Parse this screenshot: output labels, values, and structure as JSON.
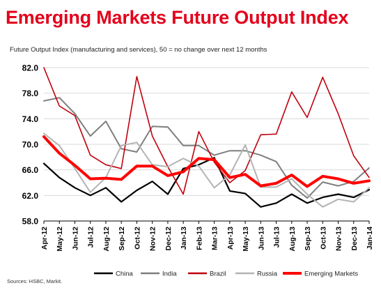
{
  "chart_data": {
    "type": "line",
    "title": "Emerging Markets Future Output Index",
    "subtitle": "Future Output Index (manufacturing and services), 50 = no change over next 12 months",
    "source": "Sources: HSBC, Markit.",
    "ylim": [
      58.0,
      82.0
    ],
    "yticks": [
      "82.0",
      "78.0",
      "74.0",
      "70.0",
      "66.0",
      "62.0",
      "58.0"
    ],
    "ytick_values": [
      82,
      78,
      74,
      70,
      66,
      62,
      58
    ],
    "grid": true,
    "legend": "bottom",
    "categories": [
      "Apr-12",
      "May-12",
      "Jun-12",
      "Jul-12",
      "Aug-12",
      "Sep-12",
      "Oct-12",
      "Nov-12",
      "Dec-12",
      "Jan-13",
      "Feb-13",
      "Mar-13",
      "Apr-13",
      "May-13",
      "Jun-13",
      "Jul-13",
      "Aug-13",
      "Sep-13",
      "Oct-13",
      "Nov-13",
      "Dec-13",
      "Jan-14"
    ],
    "series": [
      {
        "name": "China",
        "color": "#000000",
        "width": 2.2,
        "values": [
          67.0,
          64.8,
          63.2,
          62.0,
          63.2,
          61.0,
          62.8,
          64.2,
          62.2,
          66.2,
          66.8,
          67.9,
          62.7,
          62.3,
          60.2,
          60.8,
          62.2,
          60.8,
          61.7,
          62.2,
          61.7,
          62.9
        ]
      },
      {
        "name": "India",
        "color": "#7f7f7f",
        "width": 2,
        "values": [
          76.8,
          77.3,
          74.8,
          71.3,
          73.6,
          69.3,
          68.8,
          72.8,
          72.7,
          69.8,
          69.8,
          68.3,
          69.0,
          69.0,
          68.3,
          67.3,
          63.6,
          61.6,
          64.1,
          63.5,
          64.2,
          66.3
        ]
      },
      {
        "name": "Brazil",
        "color": "#c0000c",
        "width": 1.6,
        "values": [
          82.0,
          76.0,
          74.5,
          68.3,
          66.8,
          66.2,
          80.6,
          71.3,
          66.5,
          62.2,
          72.0,
          67.2,
          64.0,
          65.9,
          71.5,
          71.6,
          78.2,
          74.2,
          80.5,
          74.8,
          68.2,
          64.8
        ]
      },
      {
        "name": "Russia",
        "color": "#b3b3b3",
        "width": 2,
        "values": [
          71.7,
          69.8,
          66.2,
          62.5,
          64.8,
          69.8,
          70.3,
          66.8,
          66.5,
          67.8,
          66.6,
          63.2,
          65.2,
          69.9,
          63.3,
          63.3,
          64.6,
          62.2,
          60.2,
          61.4,
          61.0,
          63.2
        ]
      },
      {
        "name": "Emerging Markets",
        "color": "#ff0000",
        "width": 4,
        "values": [
          71.2,
          68.6,
          66.7,
          64.6,
          64.7,
          64.5,
          66.6,
          66.6,
          65.1,
          65.7,
          67.8,
          67.6,
          64.8,
          65.3,
          63.5,
          63.9,
          65.2,
          63.4,
          65.0,
          64.6,
          63.9,
          64.3
        ]
      }
    ]
  }
}
